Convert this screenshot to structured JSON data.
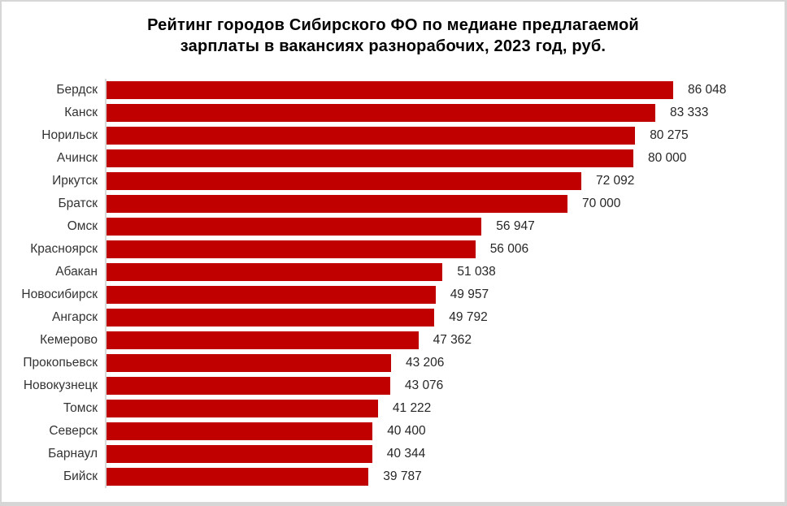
{
  "frame": {
    "title_line1": "Рейтинг городов Сибирского ФО по медиане предлагаемой",
    "title_line2": "зарплаты в вакансиях разнорабочих, 2023 год, руб."
  },
  "chart_data": {
    "type": "bar",
    "orientation": "horizontal",
    "title": "Рейтинг городов Сибирского ФО по медиане предлагаемой зарплаты в вакансиях разнорабочих, 2023 год, руб.",
    "categories": [
      "Бердск",
      "Канск",
      "Норильск",
      "Ачинск",
      "Иркутск",
      "Братск",
      "Омск",
      "Красноярск",
      "Абакан",
      "Новосибирск",
      "Ангарск",
      "Кемерово",
      "Прокопьевск",
      "Новокузнецк",
      "Томск",
      "Северск",
      "Барнаул",
      "Бийск"
    ],
    "values": [
      86048,
      83333,
      80275,
      80000,
      72092,
      70000,
      56947,
      56006,
      51038,
      49957,
      49792,
      47362,
      43206,
      43076,
      41222,
      40400,
      40344,
      39787
    ],
    "value_labels": [
      "86 048",
      "83 333",
      "80 275",
      "80 000",
      "72 092",
      "70 000",
      "56 947",
      "56 006",
      "51 038",
      "49 957",
      "49 792",
      "47 362",
      "43 206",
      "43 076",
      "41 222",
      "40 400",
      "40 344",
      "39 787"
    ],
    "xlabel": "",
    "ylabel": "",
    "xlim": [
      0,
      86048
    ],
    "bar_color": "#c00000",
    "axis_line_color": "#d9d9d9",
    "grid": false,
    "legend": false,
    "data_labels": "outside-end"
  }
}
